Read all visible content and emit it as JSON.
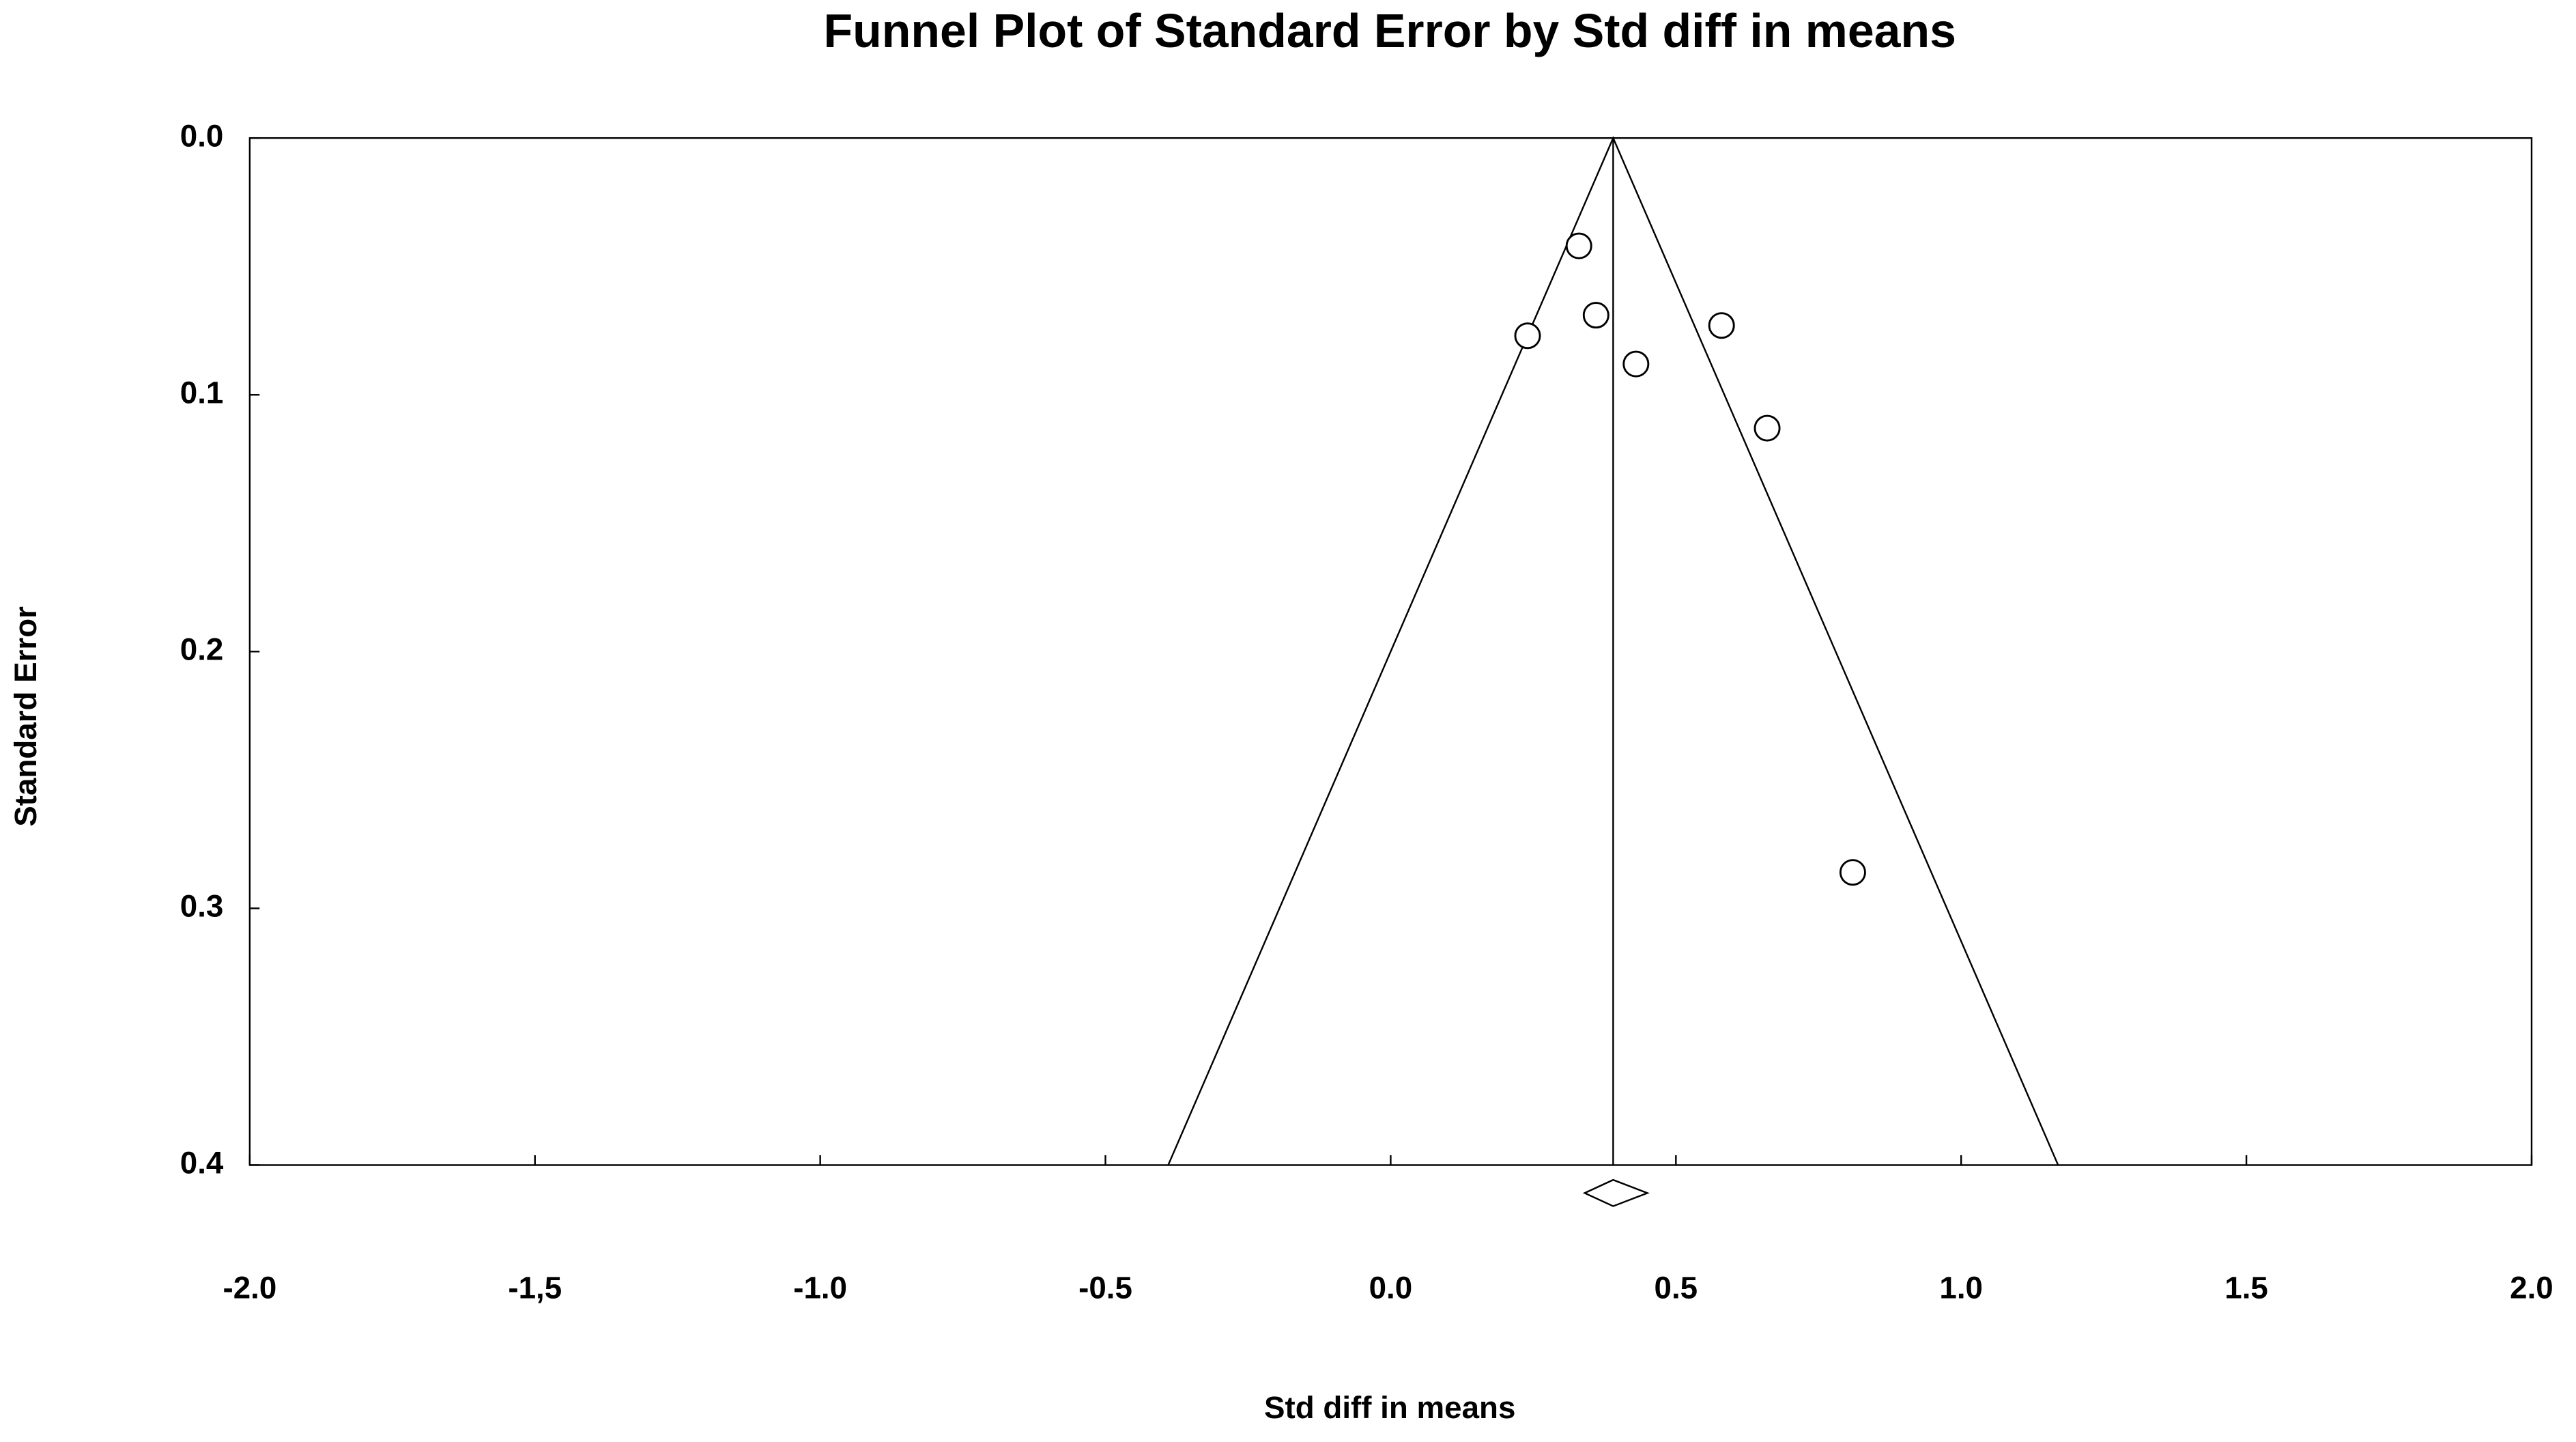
{
  "chart_data": {
    "type": "scatter",
    "title": "Funnel Plot of Standard Error by Std diff in means",
    "x_label": "Std diff in means",
    "y_label": "Standard Error",
    "x": [
      0.33,
      0.36,
      0.24,
      0.58,
      0.43,
      0.66,
      0.81
    ],
    "values": [
      0.042,
      0.069,
      0.077,
      0.073,
      0.088,
      0.113,
      0.286
    ],
    "xlim": [
      -2.0,
      2.0
    ],
    "ylim": [
      0.0,
      0.4
    ],
    "y_inverted": true,
    "xticks": [
      {
        "value": -2.0,
        "label": "-2.0"
      },
      {
        "value": -1.5,
        "label": "-1,5"
      },
      {
        "value": -1.0,
        "label": "-1.0"
      },
      {
        "value": -0.5,
        "label": "-0.5"
      },
      {
        "value": 0.0,
        "label": "0.0"
      },
      {
        "value": 0.5,
        "label": "0.5"
      },
      {
        "value": 1.0,
        "label": "1.0"
      },
      {
        "value": 1.5,
        "label": "1.5"
      },
      {
        "value": 2.0,
        "label": "2.0"
      }
    ],
    "yticks": [
      {
        "value": 0.0,
        "label": "0.0"
      },
      0.1,
      0.2,
      0.3,
      0.4
    ],
    "reference_line": 0.39,
    "funnel": {
      "x": [
        -0.39,
        0.39,
        1.17
      ],
      "y": [
        0.4,
        0.0,
        0.4
      ]
    },
    "summary": {
      "estimate": 0.39,
      "lower": 0.34,
      "upper": 0.45
    },
    "color": "#000000"
  }
}
